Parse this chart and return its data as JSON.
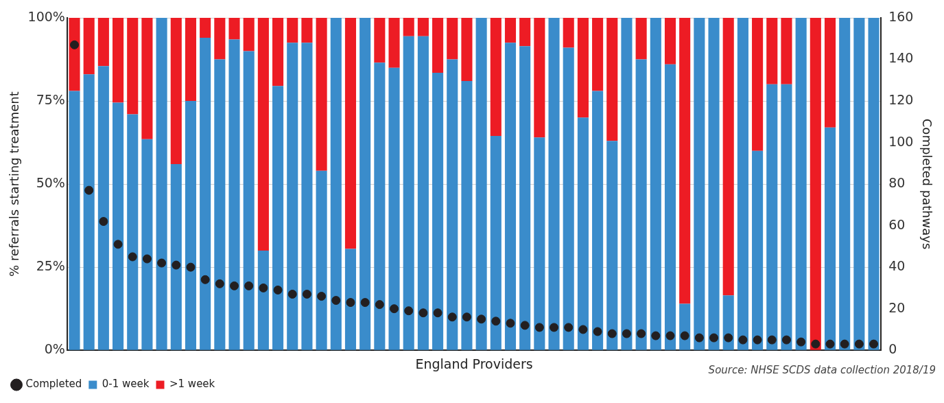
{
  "chart_data": {
    "type": "bar",
    "stacked": true,
    "xlabel": "England Providers",
    "ylabel": "% referrals starting treatment",
    "y2label": "Completed pathways",
    "categories": [
      null,
      null,
      null,
      null,
      null,
      null,
      null,
      null,
      null,
      null,
      null,
      null,
      null,
      null,
      null,
      null,
      null,
      null,
      null,
      null,
      null,
      null,
      null,
      null,
      null,
      null,
      null,
      null,
      null,
      null,
      null,
      null,
      null,
      null,
      null,
      null,
      null,
      null,
      null,
      null,
      null,
      null,
      null,
      null,
      null,
      null,
      null,
      null,
      null,
      null,
      null,
      null,
      null,
      null,
      null,
      null
    ],
    "series": [
      {
        "name": "0-1 week",
        "color": "#3a8ccb",
        "values": [
          78,
          83,
          85.5,
          74.5,
          71,
          63.5,
          100,
          56,
          75,
          94,
          87.5,
          93.5,
          90,
          30,
          79.5,
          92.5,
          92.5,
          54,
          100,
          30.5,
          100,
          86.5,
          85,
          94.5,
          94.5,
          83.5,
          87.5,
          81,
          100,
          64.5,
          92.5,
          91.5,
          64,
          100,
          91,
          70,
          78,
          63,
          100,
          87.5,
          100,
          86,
          14,
          100,
          100,
          16.5,
          100,
          60,
          80,
          80,
          100,
          0,
          67,
          100,
          100,
          100
        ]
      },
      {
        "name": ">1 week",
        "color": "#ed1c24",
        "values": [
          22,
          17,
          14.5,
          25.5,
          29,
          36.5,
          0,
          44,
          25,
          6,
          12.5,
          6.5,
          10,
          70,
          20.5,
          7.5,
          7.5,
          46,
          0,
          69.5,
          0,
          13.5,
          15,
          5.5,
          5.5,
          16.5,
          12.5,
          19,
          0,
          35.5,
          7.5,
          8.5,
          36,
          0,
          9,
          30,
          22,
          37,
          0,
          12.5,
          0,
          14,
          86,
          0,
          0,
          83.5,
          0,
          40,
          20,
          20,
          0,
          100,
          33,
          0,
          0,
          0
        ]
      },
      {
        "name": "Completed",
        "type": "scatter",
        "axis": "y2",
        "color": "#231f20",
        "values": [
          147,
          77,
          62,
          51,
          45,
          44,
          42,
          41,
          40,
          34,
          32,
          31,
          31,
          30,
          29,
          27,
          27,
          26,
          24,
          23,
          23,
          22,
          20,
          19,
          18,
          18,
          16,
          16,
          15,
          14,
          13,
          12,
          11,
          11,
          11,
          10,
          9,
          8,
          8,
          8,
          7,
          7,
          7,
          6,
          6,
          6,
          5,
          5,
          5,
          5,
          4,
          3,
          3,
          3,
          3,
          3
        ]
      }
    ],
    "ylim": [
      0,
      100
    ],
    "yticks": [
      {
        "value": 0,
        "label": "0%"
      },
      {
        "value": 25,
        "label": "25%"
      },
      {
        "value": 50,
        "label": "50%"
      },
      {
        "value": 75,
        "label": "75%"
      },
      {
        "value": 100,
        "label": "100%"
      }
    ],
    "y2lim": [
      0,
      160
    ],
    "y2ticks": [
      0,
      20,
      40,
      60,
      80,
      100,
      120,
      140,
      160
    ],
    "grid": "y",
    "legend": "bottom left",
    "marker": "circle",
    "annotations": [
      "Source: NHSE SCDS data collection 2018/19"
    ]
  }
}
